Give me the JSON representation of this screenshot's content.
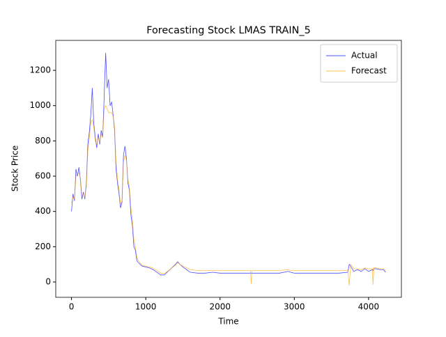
{
  "chart_data": {
    "type": "line",
    "title": "Forecasting Stock LMAS TRAIN_5",
    "xlabel": "Time",
    "ylabel": "Stock Price",
    "x": [
      0,
      20,
      40,
      60,
      80,
      100,
      120,
      140,
      160,
      180,
      200,
      220,
      240,
      260,
      280,
      300,
      320,
      340,
      360,
      380,
      400,
      420,
      440,
      460,
      480,
      500,
      520,
      540,
      560,
      580,
      600,
      620,
      640,
      660,
      680,
      700,
      720,
      740,
      760,
      780,
      800,
      820,
      840,
      860,
      880,
      900,
      950,
      1000,
      1050,
      1100,
      1150,
      1200,
      1250,
      1300,
      1350,
      1400,
      1430,
      1460,
      1500,
      1550,
      1600,
      1700,
      1800,
      1900,
      2000,
      2200,
      2410,
      2420,
      2430,
      2600,
      2800,
      2920,
      2950,
      3000,
      3200,
      3400,
      3600,
      3720,
      3740,
      3760,
      3800,
      3850,
      3900,
      3950,
      4000,
      4050,
      4060,
      4070,
      4100,
      4150,
      4200,
      4230
    ],
    "series": [
      {
        "name": "Actual",
        "color": "#0000ff",
        "values": [
          400,
          500,
          460,
          640,
          600,
          650,
          580,
          470,
          510,
          470,
          560,
          780,
          850,
          950,
          1100,
          900,
          820,
          760,
          840,
          780,
          860,
          820,
          1050,
          1300,
          1100,
          1150,
          1000,
          1020,
          950,
          860,
          640,
          560,
          500,
          420,
          450,
          720,
          770,
          700,
          560,
          520,
          380,
          320,
          200,
          180,
          120,
          110,
          90,
          85,
          80,
          70,
          55,
          40,
          40,
          60,
          80,
          100,
          115,
          100,
          85,
          70,
          55,
          50,
          50,
          55,
          50,
          50,
          50,
          50,
          50,
          50,
          50,
          60,
          55,
          50,
          50,
          50,
          50,
          55,
          100,
          90,
          60,
          70,
          60,
          75,
          60,
          70,
          65,
          75,
          75,
          70,
          70,
          55
        ]
      },
      {
        "name": "Forecast",
        "color": "#ffa500",
        "values": [
          450,
          480,
          470,
          600,
          610,
          620,
          590,
          490,
          500,
          480,
          540,
          740,
          820,
          900,
          920,
          880,
          800,
          780,
          820,
          790,
          840,
          820,
          980,
          1000,
          980,
          960,
          960,
          960,
          940,
          880,
          680,
          580,
          520,
          440,
          460,
          680,
          720,
          690,
          580,
          540,
          420,
          350,
          240,
          200,
          140,
          120,
          95,
          90,
          85,
          78,
          65,
          50,
          48,
          62,
          80,
          95,
          110,
          100,
          90,
          80,
          70,
          65,
          65,
          65,
          65,
          65,
          65,
          -10,
          65,
          65,
          65,
          70,
          65,
          65,
          65,
          65,
          65,
          65,
          -20,
          100,
          75,
          75,
          70,
          80,
          75,
          75,
          -15,
          80,
          80,
          75,
          75,
          65
        ]
      }
    ],
    "xlim": [
      -212,
      4442
    ],
    "ylim": [
      -87,
      1370
    ],
    "xticks": [
      0,
      1000,
      2000,
      3000,
      4000
    ],
    "yticks": [
      0,
      200,
      400,
      600,
      800,
      1000,
      1200
    ],
    "legend": "upper right"
  }
}
